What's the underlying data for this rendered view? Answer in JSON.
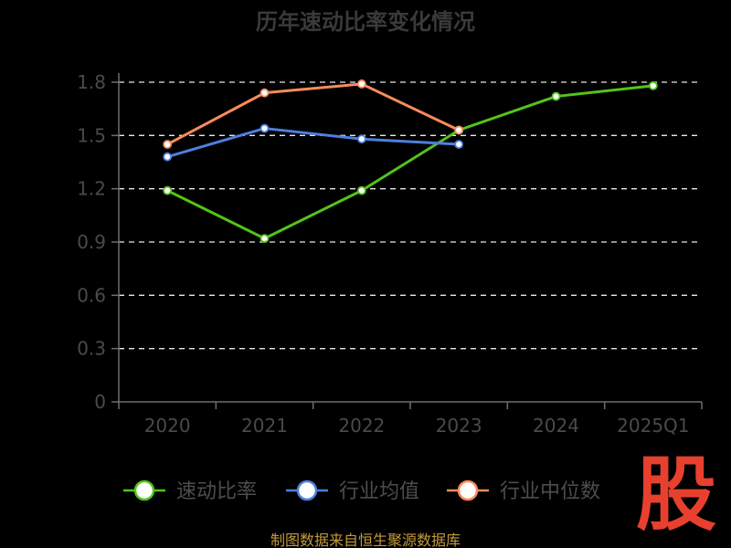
{
  "chart_data": {
    "type": "line",
    "title": "历年速动比率变化情况",
    "categories": [
      "2020",
      "2021",
      "2022",
      "2023",
      "2024",
      "2025Q1"
    ],
    "y_ticks": [
      "0",
      "0.3",
      "0.6",
      "0.9",
      "1.2",
      "1.5",
      "1.8"
    ],
    "ylim": [
      0,
      1.8
    ],
    "grid": true,
    "legend_position": "bottom",
    "series": [
      {
        "name": "速动比率",
        "color": "#52c41a",
        "values": [
          1.19,
          0.92,
          1.19,
          1.53,
          1.72,
          1.78
        ]
      },
      {
        "name": "行业均值",
        "color": "#4e7fe0",
        "values": [
          1.38,
          1.54,
          1.48,
          1.45,
          null,
          null
        ]
      },
      {
        "name": "行业中位数",
        "color": "#fa8c5a",
        "values": [
          1.45,
          1.74,
          1.79,
          1.53,
          null,
          null
        ]
      }
    ]
  },
  "source_text": "制图数据来自恒生聚源数据库",
  "logo_text": "股"
}
